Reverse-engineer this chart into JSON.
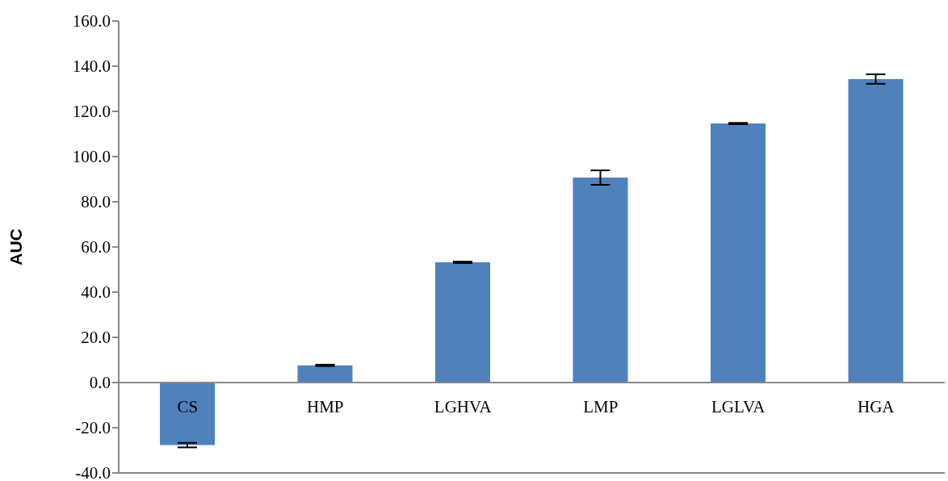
{
  "chart_data": {
    "type": "bar",
    "ylabel": "AUC",
    "categories": [
      "CS",
      "HMP",
      "LGHVA",
      "LMP",
      "LGLVA",
      "HGA"
    ],
    "values": [
      -27.7,
      7.6,
      53.2,
      90.7,
      114.6,
      134.3
    ],
    "errors": [
      1.0,
      0.3,
      0.3,
      3.2,
      0.3,
      2.1
    ],
    "color": "#4f81bd",
    "ylim": [
      -40,
      160
    ],
    "yticks": [
      {
        "value": -40,
        "label": "-40.0"
      },
      {
        "value": -20,
        "label": "-20.0"
      },
      {
        "value": 0,
        "label": "0.0"
      },
      {
        "value": 20,
        "label": "20.0"
      },
      {
        "value": 40,
        "label": "40.0"
      },
      {
        "value": 60,
        "label": "60.0"
      },
      {
        "value": 80,
        "label": "80.0"
      },
      {
        "value": 100,
        "label": "100.0"
      },
      {
        "value": 120,
        "label": "120.0"
      },
      {
        "value": 140,
        "label": "140.0"
      },
      {
        "value": 160,
        "label": "160.0"
      }
    ],
    "grid": false,
    "legend": false
  }
}
